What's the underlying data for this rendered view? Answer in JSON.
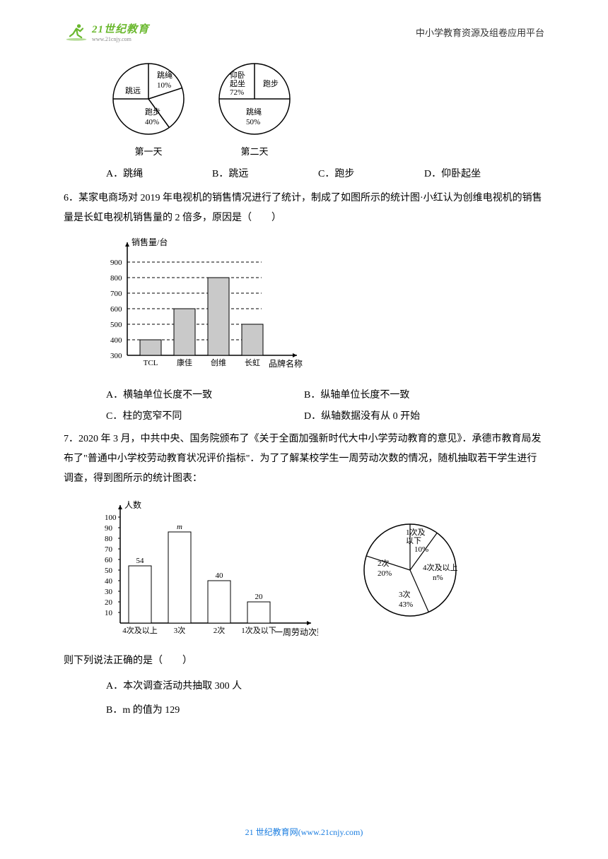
{
  "header": {
    "logo_main": "21世纪教育",
    "logo_sub": "www.21cnjy.com",
    "right_text": "中小学教育资源及组卷应用平台"
  },
  "pies": {
    "day1": {
      "caption": "第一天",
      "slices": [
        {
          "label": "跳远",
          "pct": 50,
          "label_inside": "跳远"
        },
        {
          "label": "跳绳",
          "pct": 10,
          "label_inside": "跳绳",
          "pct_text": "10%"
        },
        {
          "label": "跑步",
          "pct": 40,
          "label_inside": "跑步",
          "pct_text": "40%"
        }
      ],
      "colors": {
        "border": "#000000",
        "bg": "#ffffff"
      }
    },
    "day2": {
      "caption": "第二天",
      "slices": [
        {
          "label": "仰卧起坐",
          "label_inside": "仰卧\n起坐",
          "pct_text": "72%"
        },
        {
          "label": "跑步",
          "label_inside": "跑步"
        },
        {
          "label": "跳绳",
          "label_inside": "跳绳",
          "pct_text": "50%"
        }
      ],
      "colors": {
        "border": "#000000",
        "bg": "#ffffff"
      }
    }
  },
  "q5_options": {
    "A": "A．跳绳",
    "B": "B．跳远",
    "C": "C．跑步",
    "D": "D．仰卧起坐"
  },
  "q6": {
    "text": "6．某家电商场对 2019 年电视机的销售情况进行了统计，制成了如图所示的统计图·小红认为创维电视机的销售量是长虹电视机销售量的 2 倍多，原因是（　　）",
    "barchart": {
      "type": "bar",
      "y_label": "销售量/台",
      "x_label": "品牌名称",
      "categories": [
        "TCL",
        "康佳",
        "创维",
        "长虹"
      ],
      "values": [
        400,
        600,
        800,
        500
      ],
      "yticks": [
        300,
        400,
        500,
        600,
        700,
        800,
        900
      ],
      "ylim": [
        300,
        950
      ],
      "bar_color": "#c9c9c9",
      "border_color": "#000000",
      "grid_dash": "4,3",
      "grid_color": "#000000",
      "bg_color": "#ffffff",
      "bar_width": 0.5
    },
    "options": {
      "A": "A．横轴单位长度不一致",
      "B": "B．纵轴单位长度不一致",
      "C": "C．柱的宽窄不同",
      "D": "D．纵轴数据没有从 0 开始"
    }
  },
  "q7": {
    "text": "7．2020 年 3 月，中共中央、国务院颁布了《关于全面加强新时代大中小学劳动教育的意见》．承德市教育局发布了\"普通中小学校劳动教育状况评价指标\"．为了了解某校学生一周劳动次数的情况，随机抽取若干学生进行调查，得到图所示的统计图表：",
    "barchart": {
      "type": "bar",
      "y_label": "人数",
      "x_label": "一周劳动次数",
      "categories": [
        "4次及以上",
        "3次",
        "2次",
        "1次及以下"
      ],
      "values": [
        54,
        null,
        40,
        20
      ],
      "value_labels": [
        "54",
        "m",
        "40",
        "20"
      ],
      "yticks": [
        10,
        20,
        30,
        40,
        50,
        60,
        70,
        80,
        90,
        100
      ],
      "ylim": [
        0,
        105
      ],
      "bar_color": "#ffffff",
      "border_color": "#000000",
      "bg_color": "#ffffff",
      "m_height_est": 86
    },
    "piechart": {
      "type": "pie",
      "slices": [
        {
          "label": "1次及以下",
          "pct_text": "10%",
          "pct": 10
        },
        {
          "label": "4次及以上",
          "pct_text": "n%",
          "pct": 27
        },
        {
          "label": "3次",
          "pct_text": "43%",
          "pct": 43
        },
        {
          "label": "2次",
          "pct_text": "20%",
          "pct": 20
        }
      ],
      "colors": {
        "border": "#000000",
        "bg": "#ffffff"
      }
    },
    "below": "则下列说法正确的是（　　）",
    "options": {
      "A": "A．本次调查活动共抽取 300 人",
      "B": "B．m 的值为 129"
    }
  },
  "footer": "21 世纪教育网(www.21cnjy.com)"
}
